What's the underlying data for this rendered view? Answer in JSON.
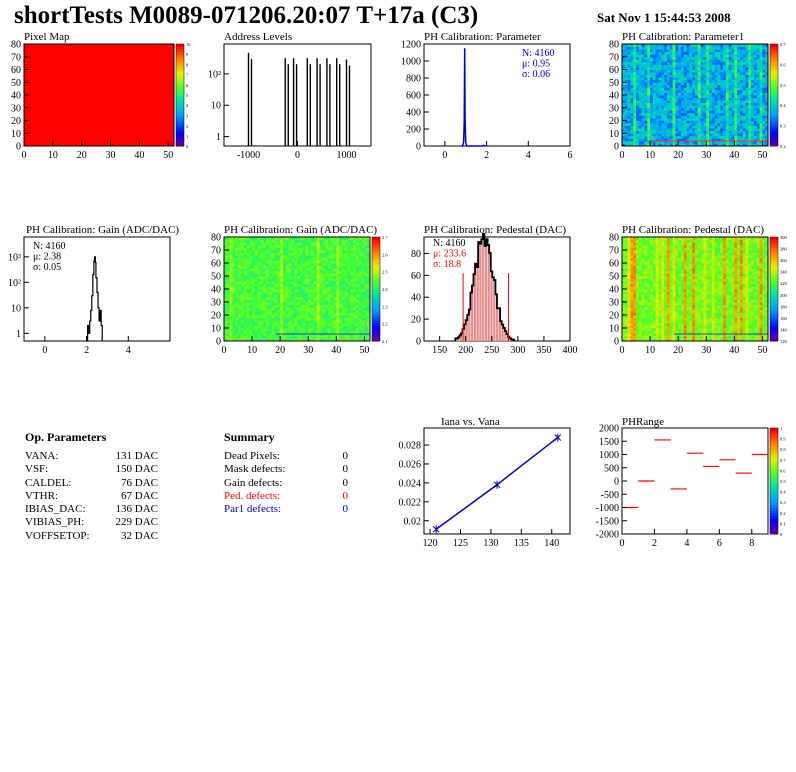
{
  "header": {
    "title": "shortTests M0089-071206.20:07 T+17a (C3)",
    "date": "Sat Nov  1 15:44:53 2008"
  },
  "charts": {
    "pixel_map": {
      "title": "Pixel Map",
      "xticks": [
        "0",
        "10",
        "20",
        "30",
        "40",
        "50"
      ],
      "yticks": [
        "0",
        "10",
        "20",
        "30",
        "40",
        "50",
        "60",
        "70",
        "80"
      ],
      "zticks": [
        "0",
        "1",
        "2",
        "3",
        "4",
        "5",
        "6",
        "7",
        "8",
        "9",
        "10"
      ]
    },
    "address_levels": {
      "title": "Address Levels",
      "xticks": [
        "-1000",
        "0",
        "1000"
      ],
      "yticks": [
        "1",
        "10",
        "10²"
      ]
    },
    "ph_param": {
      "title": "PH Calibration: Parameter",
      "stats": [
        "N: 4160",
        "μ: 0.95",
        "σ: 0.06"
      ],
      "xticks": [
        "0",
        "2",
        "4",
        "6"
      ],
      "yticks": [
        "0",
        "200",
        "400",
        "600",
        "800",
        "1000",
        "1200"
      ]
    },
    "ph_param1": {
      "title": "PH Calibration: Parameter1",
      "xticks": [
        "0",
        "10",
        "20",
        "30",
        "40",
        "50"
      ],
      "yticks": [
        "0",
        "10",
        "20",
        "30",
        "40",
        "50",
        "60",
        "70",
        "80"
      ],
      "zticks": [
        "0.2",
        "0.3",
        "0.4",
        "0.5",
        "0.6",
        "0.7"
      ]
    },
    "gain_hist": {
      "title": "PH Calibration: Gain (ADC/DAC)",
      "stats": [
        "N: 4160",
        "μ: 2.38",
        "σ: 0.05"
      ],
      "xticks": [
        "0",
        "2",
        "4"
      ],
      "yticks": [
        "1",
        "10",
        "10²",
        "10³"
      ]
    },
    "gain_map": {
      "title": "PH Calibration: Gain (ADC/DAC)",
      "xticks": [
        "0",
        "10",
        "20",
        "30",
        "40",
        "50"
      ],
      "yticks": [
        "0",
        "10",
        "20",
        "30",
        "40",
        "50",
        "60",
        "70",
        "80"
      ],
      "zticks": [
        "2.1",
        "2.2",
        "2.3",
        "2.4",
        "2.5",
        "2.6",
        "2.7"
      ]
    },
    "ped_hist": {
      "title": "PH Calibration: Pedestal (DAC)",
      "stats": [
        "N: 4160",
        "μ: 233.6",
        "σ: 18.8"
      ],
      "xticks": [
        "150",
        "200",
        "250",
        "300",
        "350",
        "400"
      ],
      "yticks": [
        "0",
        "20",
        "40",
        "60",
        "80"
      ]
    },
    "ped_map": {
      "title": "PH Calibration: Pedestal (DAC)",
      "xticks": [
        "0",
        "10",
        "20",
        "30",
        "40",
        "50"
      ],
      "yticks": [
        "0",
        "10",
        "20",
        "30",
        "40",
        "50",
        "60",
        "70",
        "80"
      ],
      "zticks": [
        "120",
        "140",
        "160",
        "180",
        "200",
        "220",
        "240",
        "260",
        "280",
        "300"
      ]
    },
    "iana": {
      "title": "Iana vs. Vana",
      "xticks": [
        "120",
        "125",
        "130",
        "135",
        "140"
      ],
      "yticks": [
        "0.02",
        "0.022",
        "0.024",
        "0.026",
        "0.028"
      ]
    },
    "phrange": {
      "title": "PHRange",
      "xticks": [
        "0",
        "2",
        "4",
        "6",
        "8"
      ],
      "yticks": [
        "-2000",
        "-1500",
        "-1000",
        "-500",
        "0",
        "500",
        "1000",
        "1500",
        "2000"
      ],
      "zticks": [
        "0",
        "0.1",
        "0.2",
        "0.3",
        "0.4",
        "0.5",
        "0.6",
        "0.7",
        "0.8",
        "0.9",
        "1"
      ]
    }
  },
  "op_params": {
    "heading": "Op. Parameters",
    "rows": [
      {
        "k": "VANA:",
        "v": "131 DAC"
      },
      {
        "k": "VSF:",
        "v": "150 DAC"
      },
      {
        "k": "CALDEL:",
        "v": "76 DAC"
      },
      {
        "k": "VTHR:",
        "v": "67 DAC"
      },
      {
        "k": "IBIAS_DAC:",
        "v": "136 DAC"
      },
      {
        "k": "VIBIAS_PH:",
        "v": "229 DAC"
      },
      {
        "k": "VOFFSETOP:",
        "v": "32 DAC"
      }
    ]
  },
  "summary": {
    "heading": "Summary",
    "rows": [
      {
        "k": "Dead Pixels:",
        "v": "0",
        "color": "#000000"
      },
      {
        "k": "Mask defects:",
        "v": "0",
        "color": "#000000"
      },
      {
        "k": "Gain defects:",
        "v": "0",
        "color": "#000000"
      },
      {
        "k": "Ped. defects:",
        "v": "0",
        "color": "#ff0000"
      },
      {
        "k": "Par1 defects:",
        "v": "0",
        "color": "#0000cc"
      }
    ]
  },
  "chart_data": [
    {
      "type": "heatmap",
      "name": "Pixel Map",
      "xlim": [
        0,
        52
      ],
      "ylim": [
        0,
        80
      ],
      "zlim": [
        0,
        10
      ],
      "uniform_value": 10
    },
    {
      "type": "bar",
      "name": "Address Levels",
      "log_y": true,
      "xlim": [
        -1500,
        1500
      ],
      "peaks_x": [
        -1000,
        -250,
        -80,
        200,
        400,
        600,
        800,
        1000
      ],
      "peaks_height": [
        500,
        350,
        350,
        350,
        350,
        350,
        350,
        320
      ]
    },
    {
      "type": "bar",
      "name": "PH Calibration: Parameter",
      "xlim": [
        -1,
        6
      ],
      "ylim": [
        0,
        1200
      ],
      "mean": 0.95,
      "sigma": 0.06,
      "entries": 4160,
      "peak": 1150
    },
    {
      "type": "heatmap",
      "name": "PH Calibration: Parameter1",
      "xlim": [
        0,
        52
      ],
      "ylim": [
        0,
        80
      ],
      "zlim": [
        0.15,
        0.75
      ]
    },
    {
      "type": "bar",
      "name": "PH Calibration: Gain (ADC/DAC)",
      "log_y": true,
      "xlim": [
        -1,
        6
      ],
      "mean": 2.38,
      "sigma": 0.05,
      "entries": 4160,
      "peak": 1000
    },
    {
      "type": "heatmap",
      "name": "PH Calibration: Gain (ADC/DAC) map",
      "xlim": [
        0,
        52
      ],
      "ylim": [
        0,
        80
      ],
      "zlim": [
        2.05,
        2.75
      ]
    },
    {
      "type": "bar",
      "name": "PH Calibration: Pedestal (DAC)",
      "xlim": [
        120,
        400
      ],
      "ylim": [
        0,
        95
      ],
      "mean": 233.6,
      "sigma": 18.8,
      "entries": 4160,
      "peak": 92,
      "cut_lines": [
        195,
        282
      ]
    },
    {
      "type": "heatmap",
      "name": "PH Calibration: Pedestal (DAC) map",
      "xlim": [
        0,
        52
      ],
      "ylim": [
        0,
        80
      ],
      "zlim": [
        120,
        300
      ]
    },
    {
      "type": "line",
      "name": "Iana vs. Vana",
      "xlim": [
        119,
        143
      ],
      "ylim": [
        0.0186,
        0.0298
      ],
      "x": [
        121,
        131,
        141
      ],
      "y": [
        0.0191,
        0.0238,
        0.0288
      ]
    },
    {
      "type": "scatter",
      "name": "PHRange",
      "xlim": [
        0,
        9
      ],
      "ylim": [
        -2000,
        2000
      ],
      "x": [
        0.5,
        1.5,
        2.5,
        3.5,
        4.5,
        5.5,
        6.5,
        7.5,
        8.5
      ],
      "y": [
        -1000,
        0,
        1550,
        -300,
        1050,
        550,
        800,
        300,
        1000
      ]
    }
  ],
  "colors": {
    "blue_line": "#0000cc",
    "red_line": "#ff0000",
    "hist": "#000000",
    "fill_hatch": "#cc2222"
  }
}
